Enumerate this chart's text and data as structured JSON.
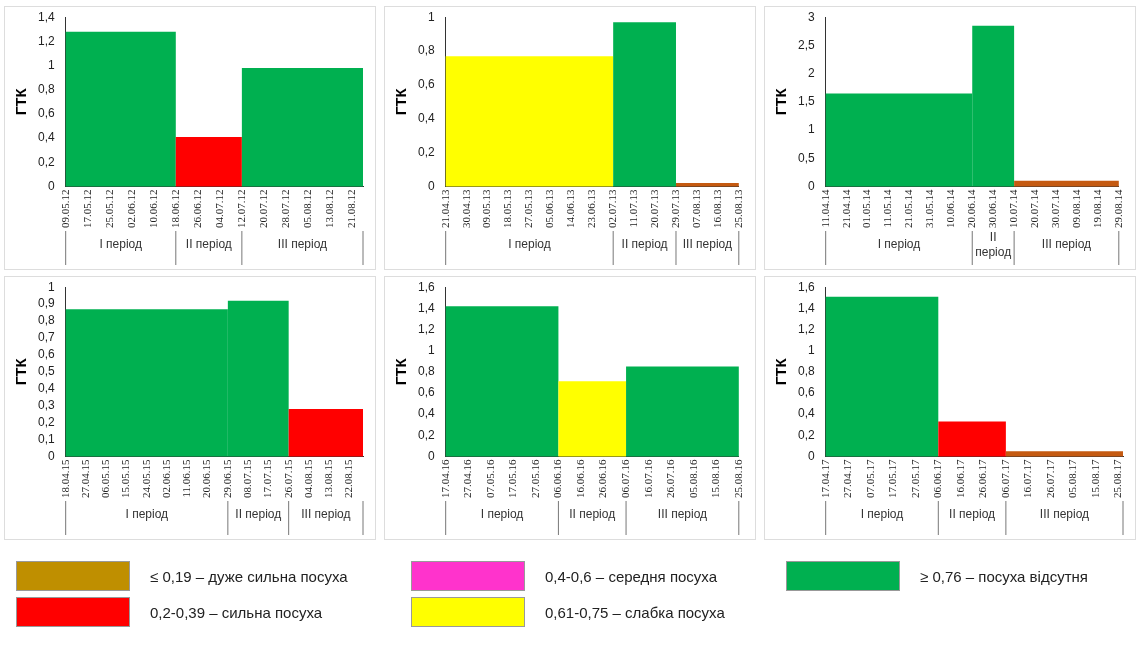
{
  "chart_data": [
    {
      "type": "histogram",
      "ylabel": "ГТК",
      "bins": [
        "--05-09",
        "--06-18",
        "--07-12",
        "--08-25"
      ],
      "values": [
        1.28,
        0.41,
        0.98
      ],
      "colors": [
        "#00b050",
        "#ff0000",
        "#00b050"
      ],
      "xlim": [
        "--05-09",
        "--08-25"
      ],
      "xticks": [
        {
          "value": "--05-09",
          "label": "09.05.12"
        },
        {
          "value": "--05-17",
          "label": "17.05.12"
        },
        {
          "value": "--05-25",
          "label": "25.05.12"
        },
        {
          "value": "--06-02",
          "label": "02.06.12"
        },
        {
          "value": "--06-10",
          "label": "10.06.12"
        },
        {
          "value": "--06-18",
          "label": "18.06.12"
        },
        {
          "value": "--06-26",
          "label": "26.06.12"
        },
        {
          "value": "--07-04",
          "label": "04.07.12"
        },
        {
          "value": "--07-12",
          "label": "12.07.12"
        },
        {
          "value": "--07-20",
          "label": "20.07.12"
        },
        {
          "value": "--07-28",
          "label": "28.07.12"
        },
        {
          "value": "--08-05",
          "label": "05.08.12"
        },
        {
          "value": "--08-13",
          "label": "13.08.12"
        },
        {
          "value": "--08-21",
          "label": "21.08.12"
        }
      ],
      "ylim": [
        0,
        1.4
      ],
      "yticks": [
        0,
        {
          "value": 0.2,
          "label": "0,2"
        },
        {
          "value": 0.4,
          "label": "0,4"
        },
        {
          "value": 0.6,
          "label": "0,6"
        },
        {
          "value": 0.8,
          "label": "0,8"
        },
        1,
        {
          "value": 1.2,
          "label": "1,2"
        },
        {
          "value": 1.4,
          "label": "1,4"
        }
      ],
      "annotations": [
        "I період",
        "II період",
        "III період"
      ]
    },
    {
      "type": "histogram",
      "ylabel": "ГТК",
      "bins": [
        "--04-21",
        "--07-02",
        "--07-29",
        "--08-25"
      ],
      "values": [
        0.77,
        0.97,
        0.02
      ],
      "colors": [
        "#ffff00",
        "#00b050",
        "#c55a11"
      ],
      "xlim": [
        "--04-21",
        "--08-25"
      ],
      "xticks": [
        {
          "value": "--04-21",
          "label": "21.04.13"
        },
        {
          "value": "--04-30",
          "label": "30.04.13"
        },
        {
          "value": "--05-09",
          "label": "09.05.13"
        },
        {
          "value": "--05-18",
          "label": "18.05.13"
        },
        {
          "value": "--05-27",
          "label": "27.05.13"
        },
        {
          "value": "--06-05",
          "label": "05.06.13"
        },
        {
          "value": "--06-14",
          "label": "14.06.13"
        },
        {
          "value": "--06-23",
          "label": "23.06.13"
        },
        {
          "value": "--07-02",
          "label": "02.07.13"
        },
        {
          "value": "--07-11",
          "label": "11.07.13"
        },
        {
          "value": "--07-20",
          "label": "20.07.13"
        },
        {
          "value": "--07-29",
          "label": "29.07.13"
        },
        {
          "value": "--08-07",
          "label": "07.08.13"
        },
        {
          "value": "--08-16",
          "label": "16.08.13"
        },
        {
          "value": "--08-25",
          "label": "25.08.13"
        }
      ],
      "ylim": [
        0,
        1
      ],
      "yticks": [
        0,
        {
          "value": 0.2,
          "label": "0,2"
        },
        {
          "value": 0.4,
          "label": "0,4"
        },
        {
          "value": 0.6,
          "label": "0,6"
        },
        {
          "value": 0.8,
          "label": "0,8"
        },
        1
      ],
      "annotations": [
        "I період",
        "II період",
        "III період"
      ]
    },
    {
      "type": "histogram",
      "ylabel": "ГТК",
      "bins": [
        "--04-11",
        "--06-20",
        "--07-10",
        "--08-29"
      ],
      "values": [
        1.65,
        2.85,
        0.1
      ],
      "colors": [
        "#00b050",
        "#00b050",
        "#c55a11"
      ],
      "xlim": [
        "--04-11",
        "--08-29"
      ],
      "xticks": [
        {
          "value": "--04-11",
          "label": "11.04.14"
        },
        {
          "value": "--04-21",
          "label": "21.04.14"
        },
        {
          "value": "--05-01",
          "label": "01.05.14"
        },
        {
          "value": "--05-11",
          "label": "11.05.14"
        },
        {
          "value": "--05-21",
          "label": "21.05.14"
        },
        {
          "value": "--05-31",
          "label": "31.05.14"
        },
        {
          "value": "--06-10",
          "label": "10.06.14"
        },
        {
          "value": "--06-20",
          "label": "20.06.14"
        },
        {
          "value": "--06-30",
          "label": "30.06.14"
        },
        {
          "value": "--07-10",
          "label": "10.07.14"
        },
        {
          "value": "--07-20",
          "label": "20.07.14"
        },
        {
          "value": "--07-30",
          "label": "30.07.14"
        },
        {
          "value": "--08-09",
          "label": "09.08.14"
        },
        {
          "value": "--08-19",
          "label": "19.08.14"
        },
        {
          "value": "--08-29",
          "label": "29.08.14"
        }
      ],
      "ylim": [
        0,
        3
      ],
      "yticks": [
        0,
        {
          "value": 0.5,
          "label": "0,5"
        },
        1,
        {
          "value": 1.5,
          "label": "1,5"
        },
        2,
        {
          "value": 2.5,
          "label": "2,5"
        },
        3
      ],
      "annotations": [
        "I період",
        "II період",
        "III період"
      ]
    },
    {
      "type": "histogram",
      "ylabel": "ГТК",
      "bins": [
        "--04-18",
        "--06-29",
        "--07-26",
        "--08-28"
      ],
      "values": [
        0.87,
        0.92,
        0.28
      ],
      "colors": [
        "#00b050",
        "#00b050",
        "#ff0000"
      ],
      "xlim": [
        "--04-18",
        "--08-28"
      ],
      "xticks": [
        {
          "value": "--04-18",
          "label": "18.04.15"
        },
        {
          "value": "--04-27",
          "label": "27.04.15"
        },
        {
          "value": "--05-06",
          "label": "06.05.15"
        },
        {
          "value": "--05-15",
          "label": "15.05.15"
        },
        {
          "value": "--05-24",
          "label": "24.05.15"
        },
        {
          "value": "--06-02",
          "label": "02.06.15"
        },
        {
          "value": "--06-11",
          "label": "11.06.15"
        },
        {
          "value": "--06-20",
          "label": "20.06.15"
        },
        {
          "value": "--06-29",
          "label": "29.06.15"
        },
        {
          "value": "--07-08",
          "label": "08.07.15"
        },
        {
          "value": "--07-17",
          "label": "17.07.15"
        },
        {
          "value": "--07-26",
          "label": "26.07.15"
        },
        {
          "value": "--08-04",
          "label": "04.08.15"
        },
        {
          "value": "--08-13",
          "label": "13.08.15"
        },
        {
          "value": "--08-22",
          "label": "22.08.15"
        }
      ],
      "ylim": [
        0,
        1
      ],
      "yticks": [
        0,
        {
          "value": 0.1,
          "label": "0,1"
        },
        {
          "value": 0.2,
          "label": "0,2"
        },
        {
          "value": 0.3,
          "label": "0,3"
        },
        {
          "value": 0.4,
          "label": "0,4"
        },
        {
          "value": 0.5,
          "label": "0,5"
        },
        {
          "value": 0.6,
          "label": "0,6"
        },
        {
          "value": 0.7,
          "label": "0,7"
        },
        {
          "value": 0.8,
          "label": "0,8"
        },
        {
          "value": 0.9,
          "label": "0,9"
        },
        1
      ],
      "annotations": [
        "I період",
        "II період",
        "III період"
      ]
    },
    {
      "type": "histogram",
      "ylabel": "ГТК",
      "bins": [
        "--04-17",
        "--06-06",
        "--07-06",
        "--08-25"
      ],
      "values": [
        1.42,
        0.71,
        0.85
      ],
      "colors": [
        "#00b050",
        "#ffff00",
        "#00b050"
      ],
      "xlim": [
        "--04-17",
        "--08-25"
      ],
      "xticks": [
        {
          "value": "--04-17",
          "label": "17.04.16"
        },
        {
          "value": "--04-27",
          "label": "27.04.16"
        },
        {
          "value": "--05-07",
          "label": "07.05.16"
        },
        {
          "value": "--05-17",
          "label": "17.05.16"
        },
        {
          "value": "--05-27",
          "label": "27.05.16"
        },
        {
          "value": "--06-06",
          "label": "06.06.16"
        },
        {
          "value": "--06-16",
          "label": "16.06.16"
        },
        {
          "value": "--06-26",
          "label": "26.06.16"
        },
        {
          "value": "--07-06",
          "label": "06.07.16"
        },
        {
          "value": "--07-16",
          "label": "16.07.16"
        },
        {
          "value": "--07-26",
          "label": "26.07.16"
        },
        {
          "value": "--08-05",
          "label": "05.08.16"
        },
        {
          "value": "--08-15",
          "label": "15.08.16"
        },
        {
          "value": "--08-25",
          "label": "25.08.16"
        }
      ],
      "ylim": [
        0,
        1.6
      ],
      "yticks": [
        0,
        {
          "value": 0.2,
          "label": "0,2"
        },
        {
          "value": 0.4,
          "label": "0,4"
        },
        {
          "value": 0.6,
          "label": "0,6"
        },
        {
          "value": 0.8,
          "label": "0,8"
        },
        1,
        {
          "value": 1.2,
          "label": "1,2"
        },
        {
          "value": 1.4,
          "label": "1,4"
        },
        {
          "value": 1.6,
          "label": "1,6"
        }
      ],
      "annotations": [
        "I період",
        "II період",
        "III період"
      ]
    },
    {
      "type": "histogram",
      "ylabel": "ГТК",
      "bins": [
        "--04-17",
        "--06-06",
        "--07-06",
        "--08-27"
      ],
      "values": [
        1.51,
        0.33,
        0.05
      ],
      "colors": [
        "#00b050",
        "#ff0000",
        "#c55a11"
      ],
      "xlim": [
        "--04-17",
        "--08-27"
      ],
      "xticks": [
        {
          "value": "--04-17",
          "label": "17.04.17"
        },
        {
          "value": "--04-27",
          "label": "27.04.17"
        },
        {
          "value": "--05-07",
          "label": "07.05.17"
        },
        {
          "value": "--05-17",
          "label": "17.05.17"
        },
        {
          "value": "--05-27",
          "label": "27.05.17"
        },
        {
          "value": "--06-06",
          "label": "06.06.17"
        },
        {
          "value": "--06-16",
          "label": "16.06.17"
        },
        {
          "value": "--06-26",
          "label": "26.06.17"
        },
        {
          "value": "--07-06",
          "label": "06.07.17"
        },
        {
          "value": "--07-16",
          "label": "16.07.17"
        },
        {
          "value": "--07-26",
          "label": "26.07.17"
        },
        {
          "value": "--08-05",
          "label": "05.08.17"
        },
        {
          "value": "--08-15",
          "label": "15.08.17"
        },
        {
          "value": "--08-25",
          "label": "25.08.17"
        }
      ],
      "ylim": [
        0,
        1.6
      ],
      "yticks": [
        0,
        {
          "value": 0.2,
          "label": "0,2"
        },
        {
          "value": 0.4,
          "label": "0,4"
        },
        {
          "value": 0.6,
          "label": "0,6"
        },
        {
          "value": 0.8,
          "label": "0,8"
        },
        1,
        {
          "value": 1.2,
          "label": "1,2"
        },
        {
          "value": 1.4,
          "label": "1,4"
        },
        {
          "value": 1.6,
          "label": "1,6"
        }
      ],
      "annotations": [
        "I період",
        "II період",
        "III період"
      ]
    },
    {
      "type": "other",
      "categories": [
        "≤ 0,19 – дуже сильна посуха",
        "0,2-0,39 – сильна посуха",
        "0,4-0,6 – середня посуха",
        "0,61-0,75 – слабка посуха",
        "≥ 0,76 – посуха відсутня"
      ],
      "colors": [
        "#bf8f00",
        "#ff0000",
        "#ff33cc",
        "#ffff00",
        "#00b050"
      ]
    }
  ]
}
